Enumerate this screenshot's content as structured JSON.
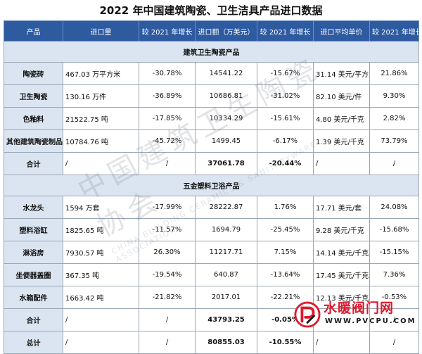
{
  "title": "2022 年中国建筑陶瓷、卫生洁具产品进口数据",
  "headers": [
    "产品",
    "进口量",
    "较 2021 年增长",
    "进口额（万美元）",
    "较 2021 年增长",
    "进口平均单价",
    "较 2021 年增长"
  ],
  "section1": "建筑卫生陶瓷产品",
  "section2": "五金塑料卫浴产品",
  "rows1": [
    {
      "name": "陶瓷砖",
      "qty": "467.03 万平方米",
      "qty_g": "-30.78%",
      "val": "14541.22",
      "val_g": "-15.67%",
      "price": "31.14 美元/平方米",
      "price_g": "21.86%"
    },
    {
      "name": "卫生陶瓷",
      "qty": "130.16 万件",
      "qty_g": "-36.89%",
      "val": "10686.81",
      "val_g": "-31.02%",
      "price": "82.10 美元/件",
      "price_g": "9.30%"
    },
    {
      "name": "色釉料",
      "qty": "21522.75 吨",
      "qty_g": "-17.85%",
      "val": "10334.29",
      "val_g": "-15.61%",
      "price": "4.80 美元/千克",
      "price_g": "2.82%"
    },
    {
      "name": "其他建筑陶瓷制品",
      "qty": "10784.76 吨",
      "qty_g": "-45.72%",
      "val": "1499.45",
      "val_g": "-6.17%",
      "price": "1.39 美元/千克",
      "price_g": "73.79%"
    }
  ],
  "total1": {
    "name": "合计",
    "qty": "/",
    "qty_g": "/",
    "val": "37061.78",
    "val_g": "-20.44%",
    "price": "/",
    "price_g": "/"
  },
  "rows2": [
    {
      "name": "水龙头",
      "qty": "1594 万套",
      "qty_g": "-17.99%",
      "val": "28222.87",
      "val_g": "1.76%",
      "price": "17.71 美元/套",
      "price_g": "24.08%"
    },
    {
      "name": "塑料浴缸",
      "qty": "1825.65 吨",
      "qty_g": "-11.57%",
      "val": "1694.79",
      "val_g": "-25.45%",
      "price": "9.28 美元/千克",
      "price_g": "-15.68%"
    },
    {
      "name": "淋浴房",
      "qty": "7930.57 吨",
      "qty_g": "26.30%",
      "val": "11217.71",
      "val_g": "7.15%",
      "price": "14.14 美元/千克",
      "price_g": "-15.15%"
    },
    {
      "name": "坐便器盖圈",
      "qty": "367.35 吨",
      "qty_g": "-19.54%",
      "val": "640.87",
      "val_g": "-13.64%",
      "price": "17.45 美元/千克",
      "price_g": "7.36%"
    },
    {
      "name": "水箱配件",
      "qty": "1663.42 吨",
      "qty_g": "-21.82%",
      "val": "2017.01",
      "val_g": "-22.21%",
      "price": "12.13 美元/千克",
      "price_g": "-0.53%"
    }
  ],
  "total2": {
    "name": "合计",
    "qty": "/",
    "qty_g": "/",
    "val": "43793.25",
    "val_g": "-0.05%",
    "price": "/",
    "price_g": "/"
  },
  "grand": {
    "name": "总计",
    "qty": "/",
    "qty_g": "/",
    "val": "80855.03",
    "val_g": "-10.55%",
    "price": "/",
    "price_g": "/"
  },
  "watermark": {
    "cn": "中国建筑卫生陶瓷协会",
    "en": "CHINA BUILDING CERAMICS & SANITARYWARE ASSOCIATION"
  },
  "logo": {
    "text": "水暖阀门网",
    "url": "WWW.PVCPU.COM"
  }
}
